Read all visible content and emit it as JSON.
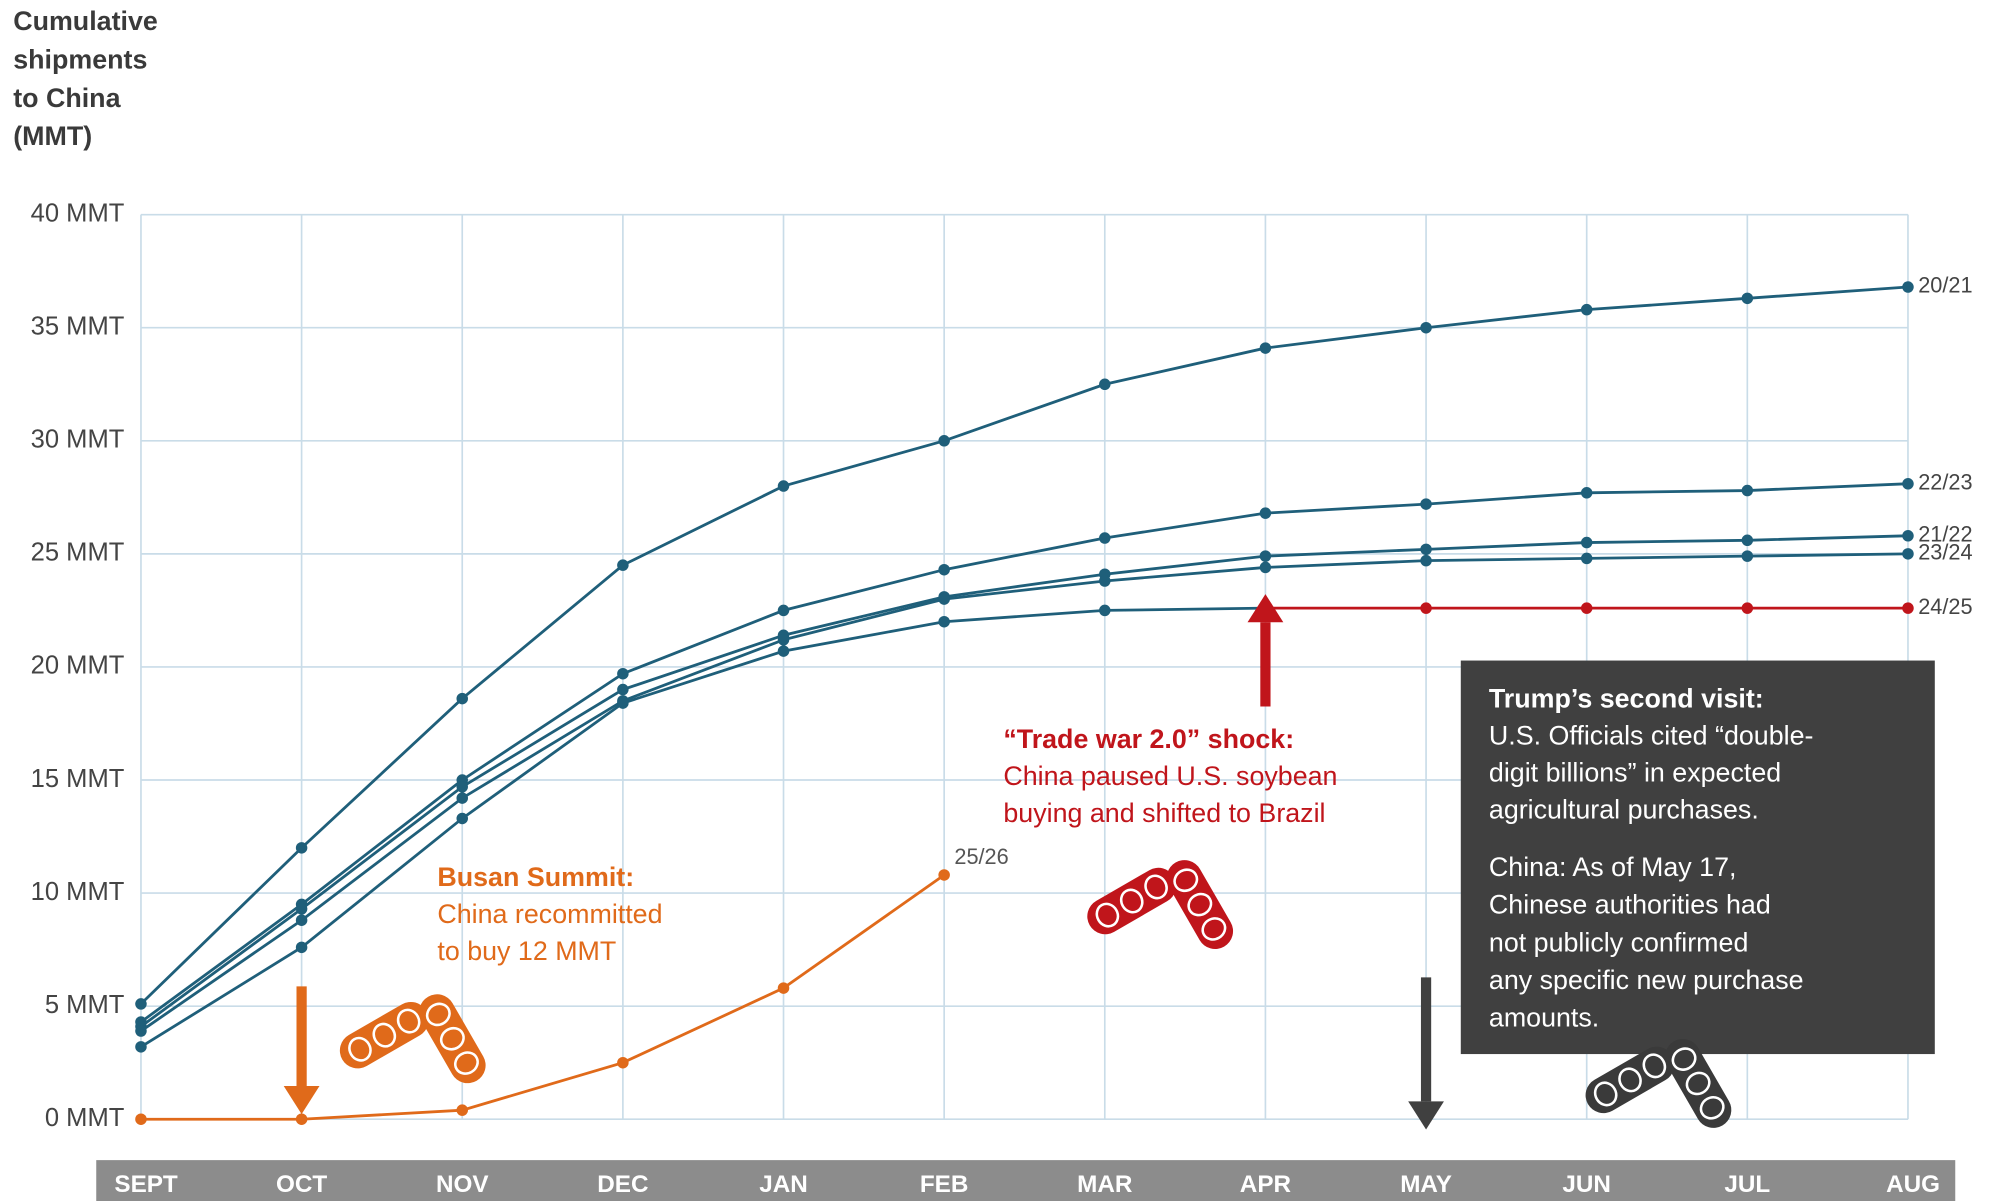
{
  "chart_data": {
    "type": "line",
    "y_axis_title": [
      "Cumulative",
      "shipments",
      "to China",
      "(MMT)"
    ],
    "categories": [
      "SEPT",
      "OCT",
      "NOV",
      "DEC",
      "JAN",
      "FEB",
      "MAR",
      "APR",
      "MAY",
      "JUN",
      "JUL",
      "AUG"
    ],
    "ylim": [
      0,
      40
    ],
    "yticks": [
      {
        "value": 0,
        "label": "0 MMT"
      },
      {
        "value": 5,
        "label": "5 MMT"
      },
      {
        "value": 10,
        "label": "10 MMT"
      },
      {
        "value": 15,
        "label": "15 MMT"
      },
      {
        "value": 20,
        "label": "20 MMT"
      },
      {
        "value": 25,
        "label": "25 MMT"
      },
      {
        "value": 30,
        "label": "30 MMT"
      },
      {
        "value": 35,
        "label": "35 MMT"
      },
      {
        "value": 40,
        "label": "40 MMT"
      }
    ],
    "grid": true,
    "series": [
      {
        "name": "20/21",
        "color": "#1f5f7a",
        "values": [
          5.1,
          12.0,
          18.6,
          24.5,
          28.0,
          30.0,
          32.5,
          34.1,
          35.0,
          35.8,
          36.3,
          36.8
        ]
      },
      {
        "name": "22/23",
        "color": "#1f5f7a",
        "values": [
          4.3,
          9.5,
          15.0,
          19.7,
          22.5,
          24.3,
          25.7,
          26.8,
          27.2,
          27.7,
          27.8,
          28.1
        ]
      },
      {
        "name": "21/22",
        "color": "#1f5f7a",
        "values": [
          4.1,
          9.3,
          14.7,
          19.0,
          21.4,
          23.1,
          24.1,
          24.9,
          25.2,
          25.5,
          25.6,
          25.8
        ]
      },
      {
        "name": "23/24",
        "color": "#1f5f7a",
        "values": [
          3.9,
          8.8,
          14.2,
          18.5,
          21.2,
          23.0,
          23.8,
          24.4,
          24.7,
          24.8,
          24.9,
          25.0
        ]
      },
      {
        "name": "24/25",
        "color": "#1f5f7a",
        "shock_color": "#c0151b",
        "values": [
          3.2,
          7.6,
          13.3,
          18.4,
          20.7,
          22.0,
          22.5,
          22.6,
          22.6,
          22.6,
          22.6,
          22.6
        ]
      },
      {
        "name": "25/26",
        "color": "#e06a1a",
        "values": [
          0,
          0,
          0.4,
          2.5,
          5.8,
          10.8,
          null,
          null,
          null,
          null,
          null,
          null
        ]
      }
    ],
    "annotations": [
      {
        "category": "OCT",
        "color": "#e06a1a",
        "direction": "down",
        "title": "Busan Summit:",
        "lines": [
          "China recommitted",
          "to buy 12 MMT"
        ]
      },
      {
        "category": "APR",
        "color": "#c0151b",
        "direction": "up",
        "title": "“Trade war 2.0” shock:",
        "lines": [
          "China paused U.S. soybean",
          "buying and shifted to Brazil"
        ]
      },
      {
        "category": "MAY",
        "color": "#404040",
        "direction": "down",
        "title": "Trump’s second visit:",
        "lines": [
          "U.S. Officials cited “double-",
          "digit billions” in expected",
          "agricultural purchases."
        ],
        "lines2": [
          "China: As of May 17,",
          "Chinese authorities had",
          "not publicly confirmed",
          "any specific new purchase",
          "amounts."
        ]
      }
    ]
  }
}
